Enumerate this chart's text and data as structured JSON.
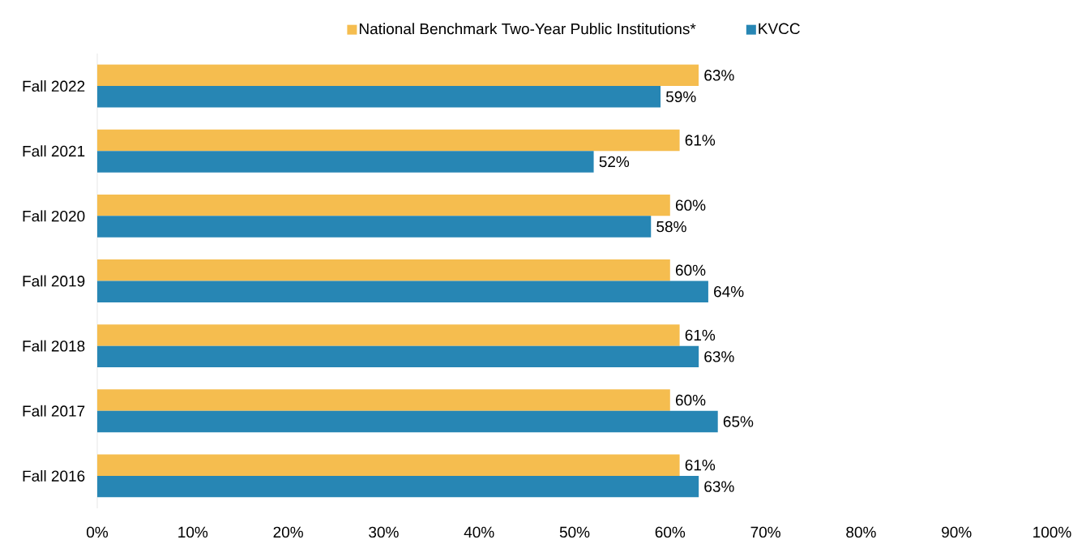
{
  "chart_data": {
    "type": "bar",
    "orientation": "horizontal",
    "categories": [
      "Fall 2022",
      "Fall 2021",
      "Fall 2020",
      "Fall 2019",
      "Fall 2018",
      "Fall 2017",
      "Fall 2016"
    ],
    "series": [
      {
        "name": "National Benchmark Two-Year Public Institutions*",
        "color": "#f5bd4f",
        "values": [
          63,
          61,
          60,
          60,
          61,
          60,
          61
        ],
        "value_labels": [
          "63%",
          "61%",
          "60%",
          "60%",
          "61%",
          "60%",
          "61%"
        ]
      },
      {
        "name": "KVCC",
        "color": "#2786b4",
        "values": [
          59,
          52,
          58,
          64,
          63,
          65,
          63
        ],
        "value_labels": [
          "59%",
          "52%",
          "58%",
          "64%",
          "63%",
          "65%",
          "63%"
        ]
      }
    ],
    "xlim": [
      0,
      100
    ],
    "xticks": [
      {
        "value": 0,
        "label": "0%"
      },
      {
        "value": 10,
        "label": "10%"
      },
      {
        "value": 20,
        "label": "20%"
      },
      {
        "value": 30,
        "label": "30%"
      },
      {
        "value": 40,
        "label": "40%"
      },
      {
        "value": 50,
        "label": "50%"
      },
      {
        "value": 60,
        "label": "60%"
      },
      {
        "value": 70,
        "label": "70%"
      },
      {
        "value": 80,
        "label": "80%"
      },
      {
        "value": 90,
        "label": "90%"
      },
      {
        "value": 100,
        "label": "100%"
      }
    ],
    "legend": "top"
  }
}
